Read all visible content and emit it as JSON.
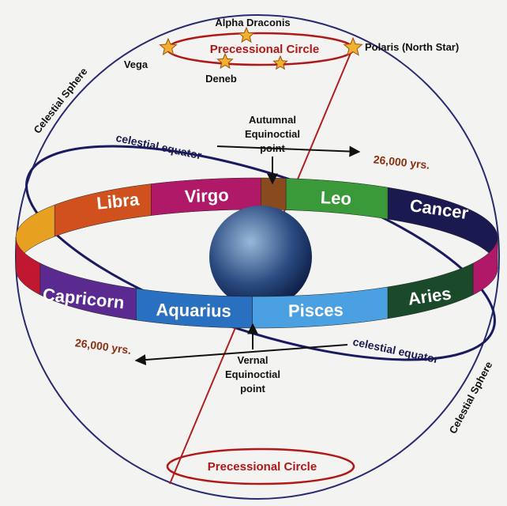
{
  "top": {
    "star_labels": [
      "Alpha Draconis",
      "Vega",
      "Deneb",
      "Polaris (North Star)"
    ],
    "circle_label": "Precessional Circle"
  },
  "sphere_labels": [
    "Celestial Sphere",
    "Celestial Sphere"
  ],
  "equator_labels": [
    "celestial equator",
    "celestial equator"
  ],
  "autumnal": [
    "Autumnal",
    "Equinoctial",
    "point"
  ],
  "vernal": [
    "Vernal",
    "Equinoctial",
    "point"
  ],
  "periods": [
    "26,000 yrs.",
    "26,000 yrs."
  ],
  "zodiac_back": [
    "Libra",
    "Virgo",
    "Leo",
    "Cancer"
  ],
  "zodiac_front": [
    "Capricorn",
    "Aquarius",
    "Pisces",
    "Aries"
  ],
  "bottom": {
    "circle_label": "Precessional Circle"
  }
}
